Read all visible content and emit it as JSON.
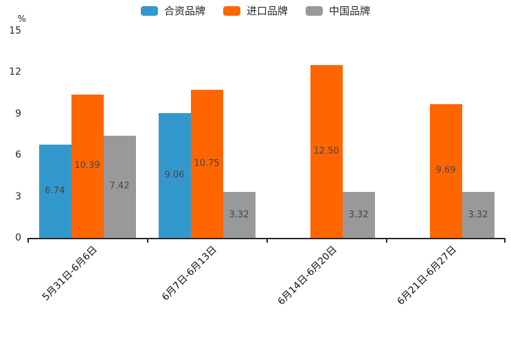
{
  "colors": {
    "axis": "#262626",
    "value_label": "#454545",
    "joint_brand": "#3399cc",
    "import_brand": "#ff6600",
    "china_brand": "#999999"
  },
  "chart_data": {
    "type": "bar",
    "title": "",
    "ylabel": "%",
    "xlabel": "",
    "ylim": [
      0,
      15
    ],
    "yticks": [
      0,
      3,
      6,
      9,
      12,
      15
    ],
    "grid": false,
    "legend_position": "top",
    "value_label_decimals": 2,
    "categories": [
      "5月31日-6月6日",
      "6月7日-6月13日",
      "6月14日-6月20日",
      "6月21日-6月27日"
    ],
    "series": [
      {
        "key": "joint-brand",
        "name": "合资品牌",
        "color": "#3399cc",
        "values": [
          6.74,
          9.06,
          null,
          null
        ]
      },
      {
        "key": "import-brand",
        "name": "进口品牌",
        "color": "#ff6600",
        "values": [
          10.39,
          10.75,
          12.5,
          9.69
        ]
      },
      {
        "key": "china-brand",
        "name": "中国品牌",
        "color": "#999999",
        "values": [
          7.42,
          3.32,
          3.32,
          3.32
        ]
      }
    ]
  }
}
